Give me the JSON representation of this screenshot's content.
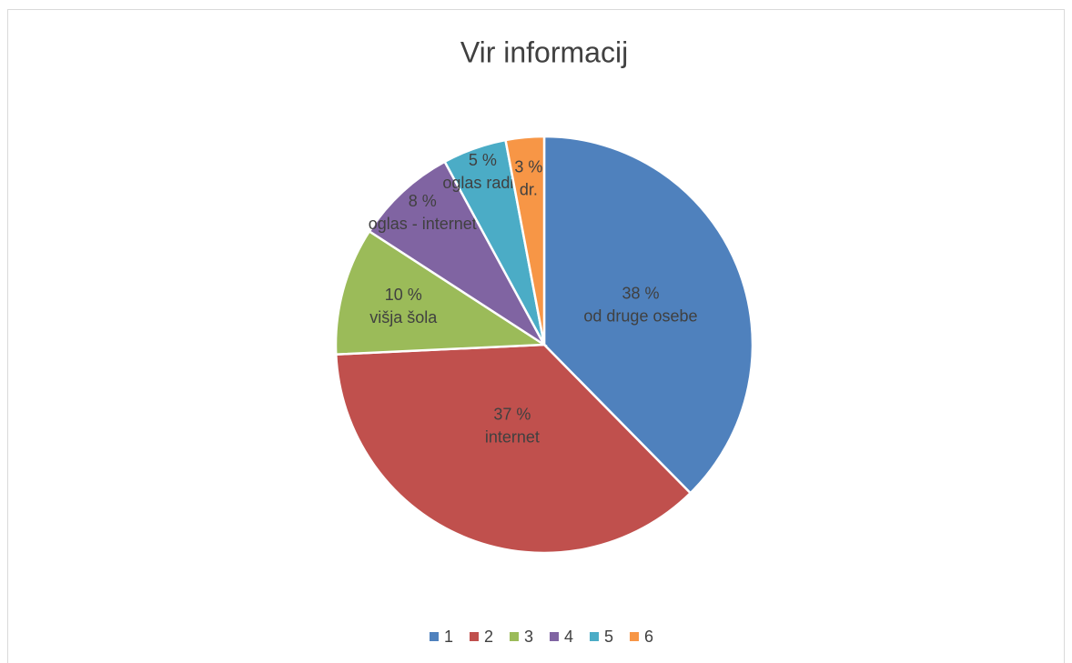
{
  "chart_data": {
    "type": "pie",
    "title": "Vir informacij",
    "categories": [
      "1",
      "2",
      "3",
      "4",
      "5",
      "6"
    ],
    "values": [
      38,
      37,
      10,
      8,
      5,
      3
    ],
    "value_labels": [
      "38 %",
      "37 %",
      "10 %",
      "8 %",
      "5 %",
      "3 %"
    ],
    "data_label_names": [
      "od druge osebe",
      "internet",
      "višja šola",
      "oglas - internet",
      "oglas radio",
      "dr."
    ],
    "colors": [
      "#4f81bd",
      "#c0504d",
      "#9bbb59",
      "#8064a2",
      "#4bacc6",
      "#f79646"
    ],
    "legend": "bottom"
  }
}
